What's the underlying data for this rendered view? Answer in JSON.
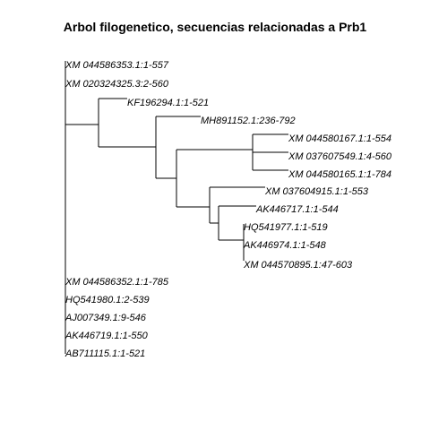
{
  "title": "Arbol filogenetico, secuencias relacionadas a Prb1",
  "tree": {
    "tips": [
      {
        "id": "t1",
        "label": "XM 044586353.1:1-557"
      },
      {
        "id": "t2",
        "label": "XM 020324325.3:2-560"
      },
      {
        "id": "t3",
        "label": "KF196294.1:1-521"
      },
      {
        "id": "t4",
        "label": "MH891152.1:236-792"
      },
      {
        "id": "t5",
        "label": "XM 044580167.1:1-554"
      },
      {
        "id": "t6",
        "label": "XM 037607549.1:4-560"
      },
      {
        "id": "t7",
        "label": "XM 044580165.1:1-784"
      },
      {
        "id": "t8",
        "label": "XM 037604915.1:1-553"
      },
      {
        "id": "t9",
        "label": "AK446717.1:1-544"
      },
      {
        "id": "t10",
        "label": "HQ541977.1:1-519"
      },
      {
        "id": "t11",
        "label": "AK446974.1:1-548"
      },
      {
        "id": "t12",
        "label": "XM 044570895.1:47-603"
      },
      {
        "id": "t13",
        "label": "XM 044586352.1:1-785"
      },
      {
        "id": "t14",
        "label": "HQ541980.1:2-539"
      },
      {
        "id": "t15",
        "label": "AJ007349.1:9-546"
      },
      {
        "id": "t16",
        "label": "AK446719.1:1-550"
      },
      {
        "id": "t17",
        "label": "AB711115.1:1-521"
      }
    ]
  }
}
